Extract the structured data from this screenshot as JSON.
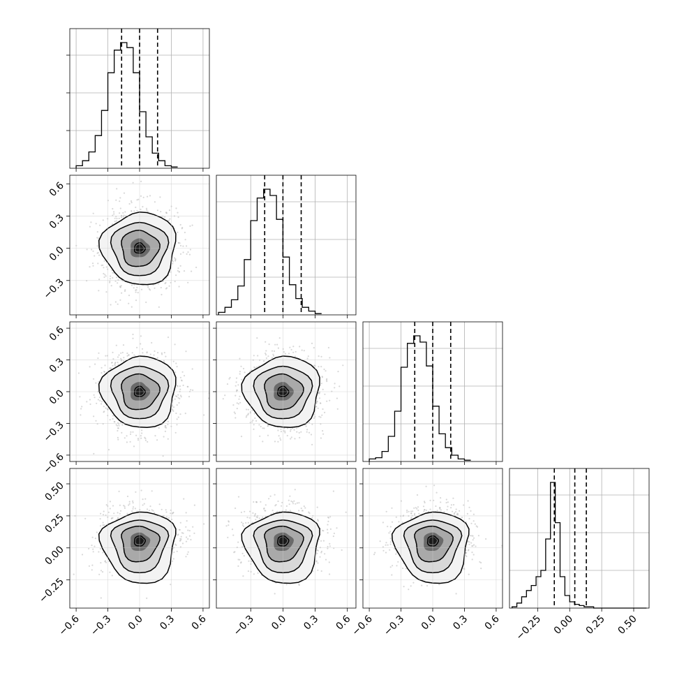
{
  "chart_data": {
    "type": "corner",
    "dimensions": 4,
    "axes": [
      {
        "range": [
          -0.66,
          0.66
        ],
        "ticks": [
          -0.6,
          -0.3,
          0.0,
          0.3,
          0.6
        ],
        "labels": [
          "−0.6",
          "−0.3",
          "0.0",
          "0.3",
          "0.6"
        ]
      },
      {
        "range": [
          -0.62,
          0.68
        ],
        "ticks": [
          -0.3,
          0.0,
          0.3,
          0.6
        ],
        "labels": [
          "−0.3",
          "0.0",
          "0.3",
          "0.6"
        ]
      },
      {
        "range": [
          -0.66,
          0.66
        ],
        "ticks": [
          -0.6,
          -0.3,
          0.0,
          0.3,
          0.6
        ],
        "labels": [
          "−0.6",
          "−0.3",
          "0.0",
          "0.3",
          "0.6"
        ]
      },
      {
        "range": [
          -0.47,
          0.62
        ],
        "ticks": [
          -0.25,
          0.0,
          0.25,
          0.5
        ],
        "labels": [
          "−0.25",
          "0.00",
          "0.25",
          "0.50"
        ]
      }
    ],
    "histograms": [
      {
        "edges_start": -0.6,
        "bin_width": 0.06,
        "quantile_lines": [
          -0.17,
          0.0,
          0.17
        ],
        "counts": [
          2,
          6,
          13,
          26,
          46,
          76,
          94,
          100,
          96,
          76,
          45,
          25,
          12,
          6,
          2,
          1
        ]
      },
      {
        "edges_start": -0.6,
        "bin_width": 0.06,
        "quantile_lines": [
          -0.17,
          0.0,
          0.17
        ],
        "counts": [
          2,
          6,
          12,
          23,
          44,
          75,
          93,
          100,
          95,
          76,
          46,
          24,
          13,
          6,
          3,
          1
        ]
      },
      {
        "edges_start": -0.6,
        "bin_width": 0.06,
        "quantile_lines": [
          -0.17,
          0.0,
          0.17
        ],
        "counts": [
          2,
          3,
          8,
          20,
          40,
          75,
          94,
          100,
          95,
          76,
          44,
          22,
          11,
          5,
          2,
          1
        ]
      },
      {
        "edges_start": -0.45,
        "bin_width": 0.0375,
        "quantile_lines": [
          -0.12,
          0.04,
          0.13
        ],
        "counts": [
          1,
          4,
          9,
          14,
          18,
          25,
          30,
          55,
          100,
          68,
          25,
          10,
          5,
          3,
          2,
          1,
          1,
          0,
          0,
          0,
          0,
          0,
          0,
          0,
          0,
          0,
          0,
          0
        ]
      }
    ],
    "pairs": [
      {
        "x_dim": 0,
        "y_dim": 1,
        "center": [
          0.0,
          0.0
        ],
        "spread": [
          0.16,
          0.16
        ]
      },
      {
        "x_dim": 0,
        "y_dim": 2,
        "center": [
          0.0,
          0.0
        ],
        "spread": [
          0.16,
          0.16
        ]
      },
      {
        "x_dim": 1,
        "y_dim": 2,
        "center": [
          0.0,
          0.0
        ],
        "spread": [
          0.16,
          0.16
        ]
      },
      {
        "x_dim": 0,
        "y_dim": 3,
        "center": [
          0.0,
          0.06
        ],
        "spread": [
          0.16,
          0.11
        ]
      },
      {
        "x_dim": 1,
        "y_dim": 3,
        "center": [
          0.0,
          0.06
        ],
        "spread": [
          0.16,
          0.11
        ]
      },
      {
        "x_dim": 2,
        "y_dim": 3,
        "center": [
          0.0,
          0.06
        ],
        "spread": [
          0.16,
          0.11
        ]
      }
    ],
    "grid": true,
    "title": "",
    "xlabel": "",
    "ylabel": ""
  }
}
